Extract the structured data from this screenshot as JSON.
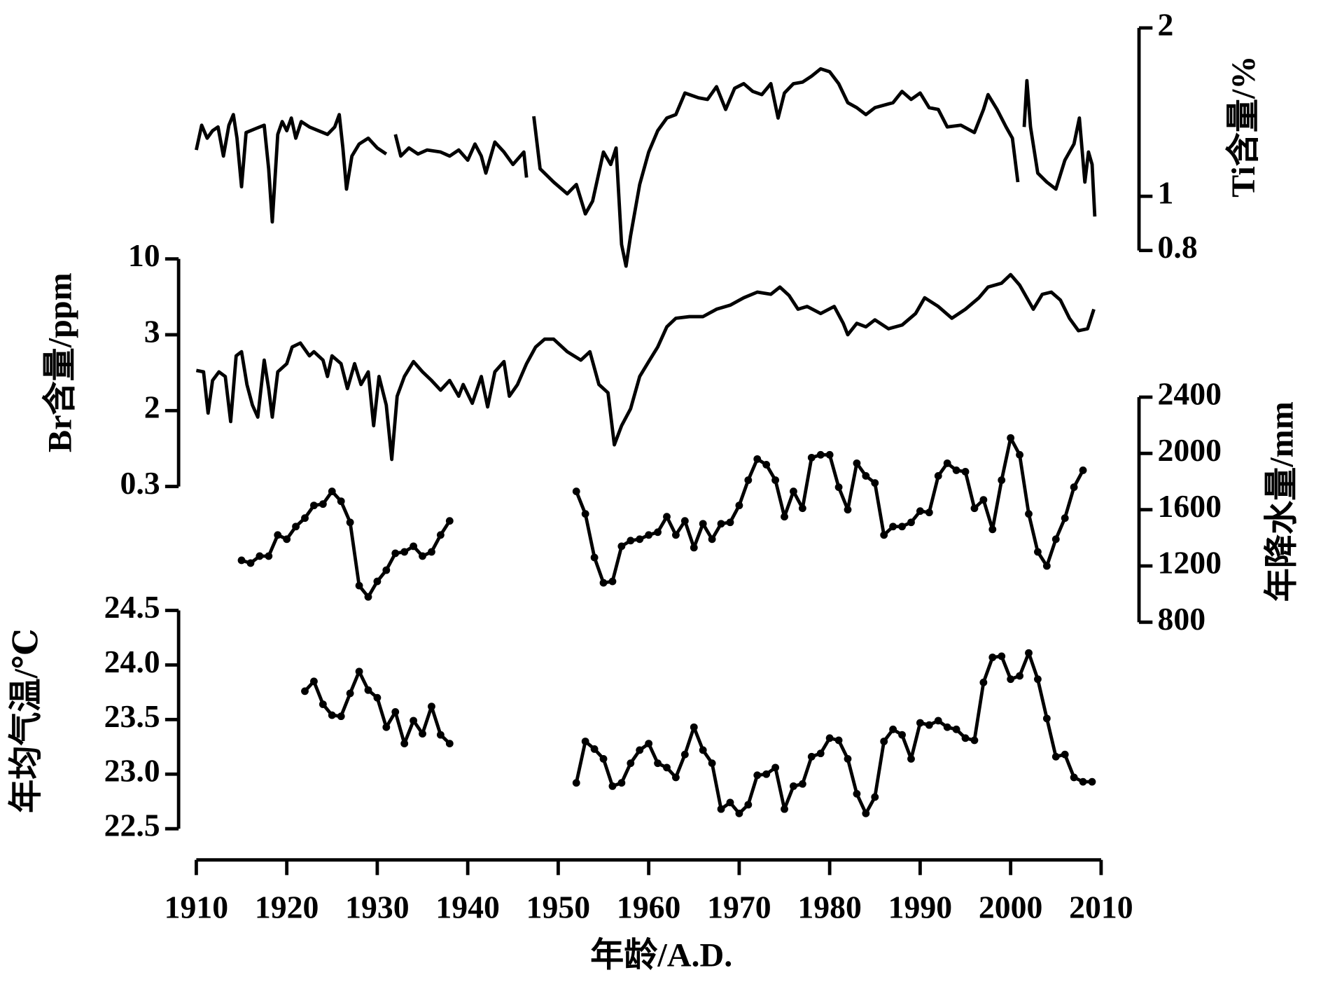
{
  "chart_data": [
    {
      "type": "line",
      "ylabel": "Ti含量/%",
      "yscale": "log",
      "ylim": [
        0.8,
        2
      ],
      "yticks": [
        0.8,
        1,
        2
      ],
      "axis_side": "right",
      "color": "#000000",
      "markers": false,
      "x": [
        1910,
        1910.6,
        1911.2,
        1911.8,
        1912.4,
        1913,
        1913.6,
        1914.1,
        1914.5,
        1915,
        1915.5,
        1916.5,
        1917.5,
        1918,
        1918.4,
        1919,
        1919.5,
        1920,
        1920.5,
        1921,
        1921.6,
        1922.5,
        1923.5,
        1924.5,
        1925.3,
        1925.8,
        1926.2,
        1926.6,
        1927.2,
        1928,
        1929,
        1930,
        1931,
        null,
        1932,
        1932.6,
        1933.5,
        1934.5,
        1935.5,
        1937,
        1938,
        1939,
        1940,
        1940.8,
        1941.5,
        1942,
        1943,
        1944,
        1945,
        1946.2,
        1946.5,
        null,
        1947.3,
        1948,
        1949.5,
        1951,
        1952,
        1953,
        1953.8,
        1955,
        1955.8,
        1956.4,
        1957,
        1957.5,
        1958,
        1959,
        1960,
        1961,
        1962,
        1963,
        1964,
        1965.5,
        1966.5,
        1967.5,
        1968.5,
        1969.5,
        1970.5,
        1971.5,
        1972.5,
        1973.5,
        1974.3,
        1975,
        1976,
        1977,
        1978,
        1979,
        1980,
        1981,
        1982,
        1983,
        1984,
        1985,
        1987,
        1988,
        1989,
        1990,
        1991,
        1992,
        1993,
        1994.5,
        1996,
        1997,
        1997.5,
        1998.5,
        1999.5,
        2000.2,
        2000.8,
        null,
        2001.5,
        2001.8,
        2002.2,
        2003,
        2004,
        2005,
        2006,
        2007,
        2007.6,
        2008.2,
        2008.6,
        2009,
        2009.3
      ],
      "values": [
        1.21,
        1.34,
        1.27,
        1.31,
        1.33,
        1.18,
        1.34,
        1.4,
        1.27,
        1.04,
        1.3,
        1.32,
        1.34,
        1.12,
        0.9,
        1.29,
        1.36,
        1.31,
        1.38,
        1.27,
        1.36,
        1.33,
        1.31,
        1.29,
        1.33,
        1.4,
        1.22,
        1.03,
        1.18,
        1.24,
        1.27,
        1.22,
        1.19,
        null,
        1.29,
        1.18,
        1.22,
        1.19,
        1.21,
        1.2,
        1.18,
        1.21,
        1.16,
        1.24,
        1.18,
        1.1,
        1.25,
        1.2,
        1.14,
        1.2,
        1.08,
        null,
        1.39,
        1.12,
        1.06,
        1.01,
        1.05,
        0.93,
        0.98,
        1.2,
        1.14,
        1.22,
        0.82,
        0.75,
        0.85,
        1.05,
        1.2,
        1.31,
        1.38,
        1.4,
        1.53,
        1.5,
        1.49,
        1.57,
        1.43,
        1.56,
        1.59,
        1.54,
        1.52,
        1.59,
        1.38,
        1.53,
        1.59,
        1.6,
        1.64,
        1.69,
        1.67,
        1.59,
        1.47,
        1.44,
        1.4,
        1.44,
        1.47,
        1.54,
        1.49,
        1.53,
        1.44,
        1.43,
        1.33,
        1.34,
        1.3,
        1.43,
        1.52,
        1.43,
        1.33,
        1.27,
        1.06,
        null,
        1.33,
        1.61,
        1.33,
        1.1,
        1.06,
        1.03,
        1.16,
        1.24,
        1.38,
        1.06,
        1.2,
        1.14,
        0.92
      ]
    },
    {
      "type": "line",
      "ylabel": "Br含量/ppm",
      "yscale": "segmented",
      "ylim": [
        0.3,
        10
      ],
      "yticks": [
        0.3,
        2,
        3,
        10
      ],
      "axis_side": "left",
      "color": "#000000",
      "markers": false,
      "x": [
        1910,
        1910.8,
        1911.3,
        1911.8,
        1912.5,
        1913.2,
        1913.8,
        1914.4,
        1915,
        1915.6,
        1916.2,
        1916.8,
        1917.5,
        1918,
        1918.4,
        1919,
        1920,
        1920.6,
        1921.5,
        1922.5,
        1923,
        1924,
        1924.5,
        1925,
        1926,
        1926.7,
        1927.5,
        1928.2,
        1929,
        1929.6,
        1930.2,
        1931,
        1931.6,
        1932.2,
        1933,
        1934,
        1935,
        1936,
        1937,
        1938,
        1939,
        1939.5,
        1940.5,
        1941.5,
        1942.2,
        1943,
        1944,
        1944.6,
        1945.5,
        1946.5,
        1947.5,
        1948.5,
        1949.5,
        1951,
        1952.5,
        1953.5,
        1954.5,
        1955.5,
        1956.2,
        1957,
        1958,
        1959,
        1960,
        1961,
        1962,
        1963,
        1964.5,
        1966,
        1967.5,
        1969,
        1970.5,
        1972,
        1973.5,
        1974.5,
        1975.5,
        1976.5,
        1977.5,
        1979,
        1980.5,
        1981.5,
        1982,
        1983,
        1984,
        1985,
        1986.5,
        1988,
        1989.5,
        1990.5,
        1992,
        1993.5,
        1995,
        1996.5,
        1997.5,
        1999,
        2000,
        2001,
        2002.5,
        2003.5,
        2004.5,
        2005.5,
        2006.5,
        2007.5,
        2008.5,
        2009.2
      ],
      "values": [
        2.48,
        2.46,
        1.88,
        2.35,
        2.46,
        2.4,
        1.52,
        2.68,
        2.74,
        2.3,
        2.06,
        1.7,
        2.62,
        2.25,
        1.7,
        2.46,
        2.57,
        2.81,
        2.87,
        2.68,
        2.74,
        2.62,
        2.4,
        2.68,
        2.57,
        2.25,
        2.57,
        2.3,
        2.46,
        1.37,
        2.4,
        2.06,
        0.59,
        2.16,
        2.4,
        2.6,
        2.46,
        2.35,
        2.23,
        2.35,
        2.16,
        2.3,
        2.08,
        2.4,
        2.04,
        2.46,
        2.6,
        2.16,
        2.3,
        2.57,
        2.81,
        2.93,
        2.93,
        2.74,
        2.62,
        2.74,
        2.3,
        2.2,
        0.85,
        1.37,
        2.02,
        2.4,
        2.6,
        2.81,
        3.4,
        3.9,
        4.0,
        4.0,
        4.5,
        4.8,
        5.4,
        5.9,
        5.7,
        6.4,
        5.6,
        4.5,
        4.7,
        4.2,
        4.7,
        3.6,
        3.0,
        3.6,
        3.4,
        3.8,
        3.3,
        3.5,
        4.2,
        5.4,
        4.7,
        3.9,
        4.5,
        5.4,
        6.4,
        6.8,
        7.8,
        6.6,
        4.5,
        5.7,
        5.9,
        5.2,
        3.9,
        3.2,
        3.3,
        4.5
      ]
    },
    {
      "type": "line",
      "ylabel": "年降水量/mm",
      "yscale": "linear",
      "ylim": [
        800,
        2400
      ],
      "yticks": [
        800,
        1200,
        1600,
        2000,
        2400
      ],
      "axis_side": "right",
      "color": "#000000",
      "markers": true,
      "x": [
        1915,
        1916,
        1917,
        1918,
        1919,
        1920,
        1921,
        1922,
        1923,
        1924,
        1925,
        1926,
        1927,
        1928,
        1929,
        1930,
        1931,
        1932,
        1933,
        1934,
        1935,
        1936,
        1937,
        1938,
        null,
        1952,
        1953,
        1954,
        1955,
        1956,
        1957,
        1958,
        1959,
        1960,
        1961,
        1962,
        1963,
        1964,
        1965,
        1966,
        1967,
        1968,
        1969,
        1970,
        1971,
        1972,
        1973,
        1974,
        1975,
        1976,
        1977,
        1978,
        1979,
        1980,
        1981,
        1982,
        1983,
        1984,
        1985,
        1986,
        1987,
        1988,
        1989,
        1990,
        1991,
        1992,
        1993,
        1994,
        1995,
        1996,
        1997,
        1998,
        1999,
        2000,
        2001,
        2002,
        2003,
        2004,
        2005,
        2006,
        2007,
        2008
      ],
      "values": [
        1240,
        1220,
        1270,
        1270,
        1420,
        1390,
        1480,
        1540,
        1630,
        1640,
        1730,
        1660,
        1510,
        1060,
        980,
        1090,
        1170,
        1290,
        1300,
        1340,
        1270,
        1300,
        1420,
        1520,
        null,
        1730,
        1570,
        1260,
        1080,
        1090,
        1340,
        1380,
        1390,
        1420,
        1440,
        1550,
        1420,
        1520,
        1330,
        1500,
        1390,
        1500,
        1510,
        1630,
        1810,
        1960,
        1920,
        1810,
        1550,
        1730,
        1610,
        1970,
        1990,
        1990,
        1760,
        1600,
        1930,
        1840,
        1790,
        1420,
        1480,
        1480,
        1510,
        1590,
        1580,
        1840,
        1930,
        1880,
        1870,
        1610,
        1670,
        1460,
        1810,
        2110,
        1990,
        1570,
        1300,
        1200,
        1390,
        1540,
        1760,
        1880
      ]
    },
    {
      "type": "line",
      "ylabel": "年均气温/℃",
      "xlabel": "年龄/A.D.",
      "yscale": "linear",
      "ylim": [
        22.5,
        24.5
      ],
      "yticks": [
        22.5,
        {
          "value": 23,
          "label": "23.0"
        },
        23.5,
        {
          "value": 24,
          "label": "24.0"
        },
        24.5
      ],
      "axis_side": "left",
      "color": "#000000",
      "markers": true,
      "xlim": [
        1910,
        2010
      ],
      "xticks": [
        1910,
        1920,
        1930,
        1940,
        1950,
        1960,
        1970,
        1980,
        1990,
        2000,
        2010
      ],
      "x": [
        1922,
        1923,
        1924,
        1925,
        1926,
        1927,
        1928,
        1929,
        1930,
        1931,
        1932,
        1933,
        1934,
        1935,
        1936,
        1937,
        1938,
        null,
        1952,
        1953,
        1954,
        1955,
        1956,
        1957,
        1958,
        1959,
        1960,
        1961,
        1962,
        1963,
        1964,
        1965,
        1966,
        1967,
        1968,
        1969,
        1970,
        1971,
        1972,
        1973,
        1974,
        1975,
        1976,
        1977,
        1978,
        1979,
        1980,
        1981,
        1982,
        1983,
        1984,
        1985,
        1986,
        1987,
        1988,
        1989,
        1990,
        1991,
        1992,
        1993,
        1994,
        1995,
        1996,
        1997,
        1998,
        1999,
        2000,
        2001,
        2002,
        2003,
        2004,
        2005,
        2006,
        2007,
        2008,
        2009
      ],
      "values": [
        23.76,
        23.85,
        23.64,
        23.54,
        23.53,
        23.74,
        23.94,
        23.77,
        23.7,
        23.43,
        23.57,
        23.28,
        23.49,
        23.37,
        23.62,
        23.36,
        23.28,
        null,
        22.92,
        23.3,
        23.23,
        23.14,
        22.89,
        22.92,
        23.1,
        23.22,
        23.28,
        23.1,
        23.06,
        22.97,
        23.18,
        23.43,
        23.22,
        23.1,
        22.68,
        22.74,
        22.64,
        22.72,
        22.99,
        23.0,
        23.06,
        22.68,
        22.89,
        22.91,
        23.16,
        23.19,
        23.33,
        23.31,
        23.14,
        22.82,
        22.64,
        22.79,
        23.3,
        23.41,
        23.36,
        23.14,
        23.47,
        23.45,
        23.49,
        23.43,
        23.41,
        23.33,
        23.31,
        23.84,
        24.07,
        24.08,
        23.87,
        23.9,
        24.11,
        23.87,
        23.51,
        23.16,
        23.18,
        22.97,
        22.93,
        22.93
      ]
    }
  ]
}
